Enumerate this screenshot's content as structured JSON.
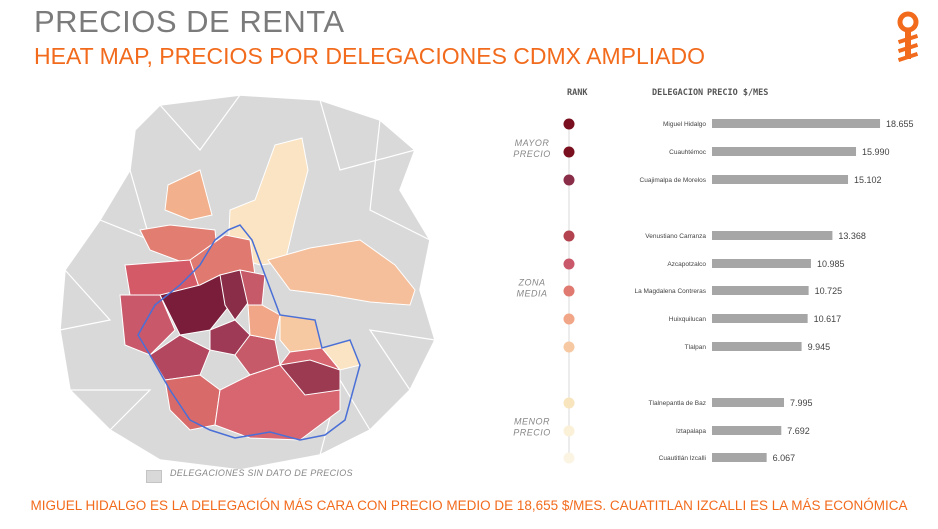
{
  "header": {
    "title": "PRECIOS DE RENTA",
    "subtitle": "HEAT MAP, PRECIOS POR DELEGACIONES CDMX AMPLIADO"
  },
  "colors": {
    "accent": "#f26b1d",
    "bar": "#a6a6a6",
    "no_data": "#d9d9d9",
    "boundary": "#4a6fd6"
  },
  "map": {
    "legend_label": "DELEGACIONES SIN DATO DE PRECIOS"
  },
  "chart_data": {
    "type": "bar",
    "orientation": "horizontal",
    "headers": {
      "rank": "RANK",
      "category": "DELEGACION",
      "value": "PRECIO $/MES"
    },
    "groups": [
      {
        "label_lines": [
          "MAYOR",
          "PRECIO"
        ],
        "start": 0,
        "end": 2
      },
      {
        "label_lines": [
          "ZONA",
          "MEDIA"
        ],
        "start": 3,
        "end": 7
      },
      {
        "label_lines": [
          "MENOR",
          "PRECIO"
        ],
        "start": 8,
        "end": 10
      }
    ],
    "categories": [
      "Miguel Hidalgo",
      "Cuauhtémoc",
      "Cuajimalpa de Morelos",
      "Venustiano Carranza",
      "Azcapotzalco",
      "La Magdalena Contreras",
      "Huixquilucan",
      "Tlalpan",
      "Tlalnepantla de Baz",
      "Iztapalapa",
      "Cuautitlán Izcalli"
    ],
    "values": [
      18655,
      15990,
      15102,
      13368,
      10985,
      10725,
      10617,
      9945,
      7995,
      7692,
      6067
    ],
    "value_labels": [
      "18.655",
      "15.990",
      "15.102",
      "13.368",
      "10.985",
      "10.725",
      "10.617",
      "9.945",
      "7.995",
      "7.692",
      "6.067"
    ],
    "rank_colors": [
      "#7a0f1f",
      "#7a0f1f",
      "#8a2d48",
      "#b3434f",
      "#c9586a",
      "#e07a70",
      "#f2a688",
      "#f7c9a2",
      "#f8e5bd",
      "#fbf0d8",
      "#fcf4e3"
    ],
    "xlim": [
      0,
      20000
    ]
  },
  "footer": {
    "text": "MIGUEL HIDALGO ES LA DELEGACIÓN MÁS CARA CON PRECIO MEDIO DE 18,655 $/MES. CAUATITLAN IZCALLI ES LA MÁS ECONÓMICA"
  }
}
